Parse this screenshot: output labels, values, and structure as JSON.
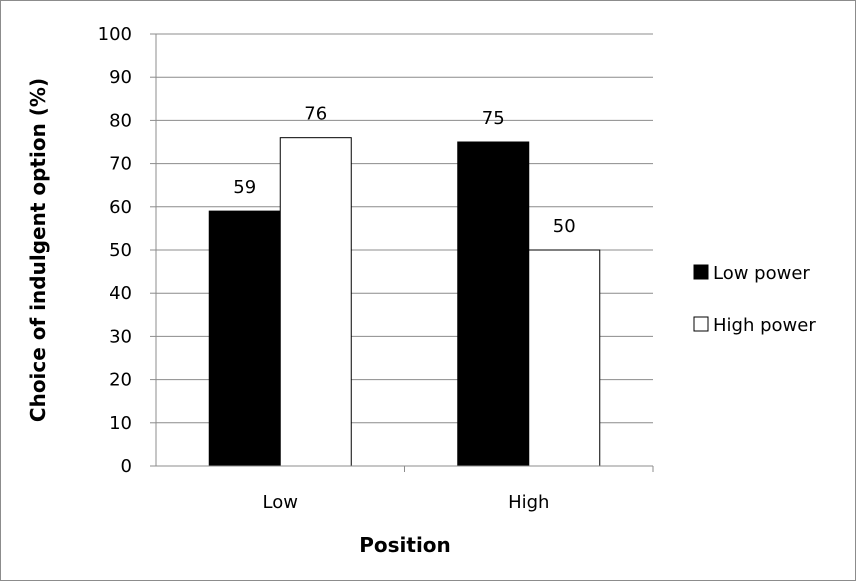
{
  "chart_data": {
    "type": "bar",
    "categories": [
      "Low",
      "High"
    ],
    "series": [
      {
        "name": "Low power",
        "values": [
          59,
          75
        ],
        "color": "#000000"
      },
      {
        "name": "High power",
        "values": [
          76,
          50
        ],
        "color": "#ffffff"
      }
    ],
    "xlabel": "Position",
    "ylabel": "Choice of indulgent option (%)",
    "ylim": [
      0,
      100
    ],
    "yticks": [
      0,
      10,
      20,
      30,
      40,
      50,
      60,
      70,
      80,
      90,
      100
    ],
    "grid": true,
    "legend": "right"
  }
}
